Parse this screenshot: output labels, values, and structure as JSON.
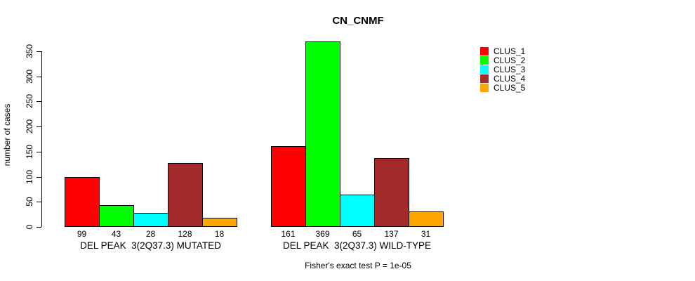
{
  "chart_data": {
    "type": "bar",
    "title": "CN_CNMF",
    "ylabel": "number of cases",
    "xlabel": "",
    "yticks": [
      0,
      50,
      100,
      150,
      200,
      250,
      300,
      350
    ],
    "ylim": [
      0,
      370
    ],
    "grid": false,
    "legend_position": "right",
    "series": [
      "CLUS_1",
      "CLUS_2",
      "CLUS_3",
      "CLUS_4",
      "CLUS_5"
    ],
    "series_colors": [
      "#ff0000",
      "#00ff00",
      "#00ffff",
      "#a52a2a",
      "#ffa500"
    ],
    "groups": [
      {
        "label": "DEL PEAK  3(2Q37.3) MUTATED",
        "values": [
          99,
          43,
          28,
          128,
          18
        ]
      },
      {
        "label": "DEL PEAK  3(2Q37.3) WILD-TYPE",
        "values": [
          161,
          369,
          65,
          137,
          31
        ]
      }
    ],
    "annotation": "Fisher's exact test P = 1e-05"
  }
}
